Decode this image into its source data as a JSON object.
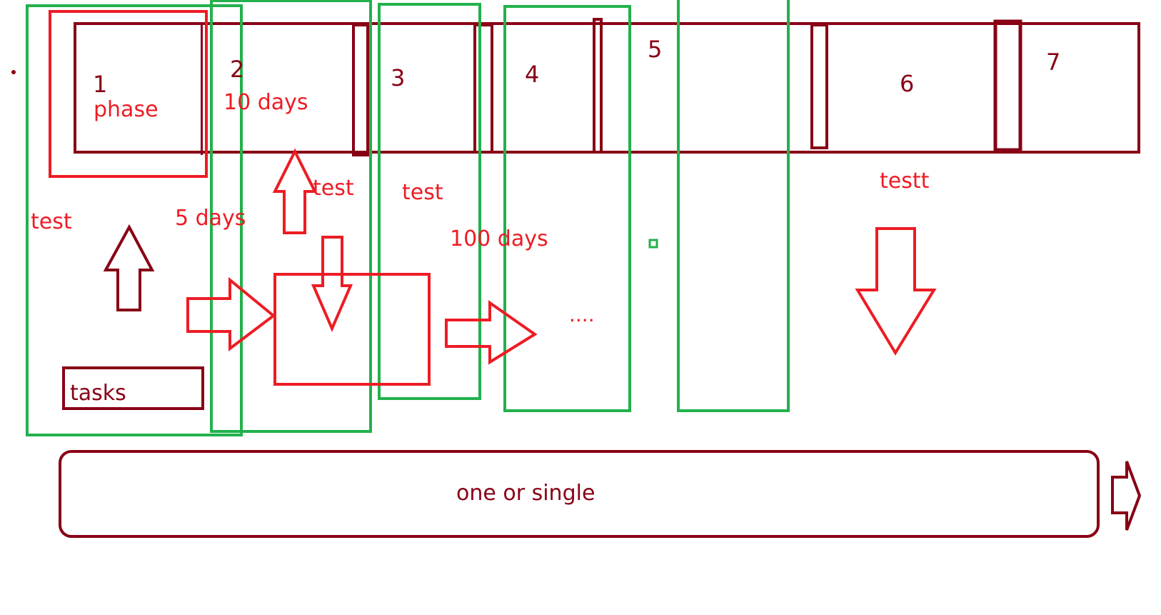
{
  "colors": {
    "dark_red": "#880015",
    "red": "#ed1c24",
    "green": "#22b14c",
    "background": "#ffffff"
  },
  "phases": {
    "p1": "1",
    "p2": "2",
    "p3": "3",
    "p4": "4",
    "p5": "5",
    "p6": "6",
    "p7": "7"
  },
  "labels": {
    "phase": "phase",
    "ten_days": "10 days",
    "five_days": "5 days",
    "hundred_days": "100 days",
    "test_left": "test",
    "test_mid": "test",
    "test_right": "test",
    "testt": "testt",
    "ellipsis": "....",
    "tasks": "tasks",
    "bottom_bar": "one or single"
  }
}
